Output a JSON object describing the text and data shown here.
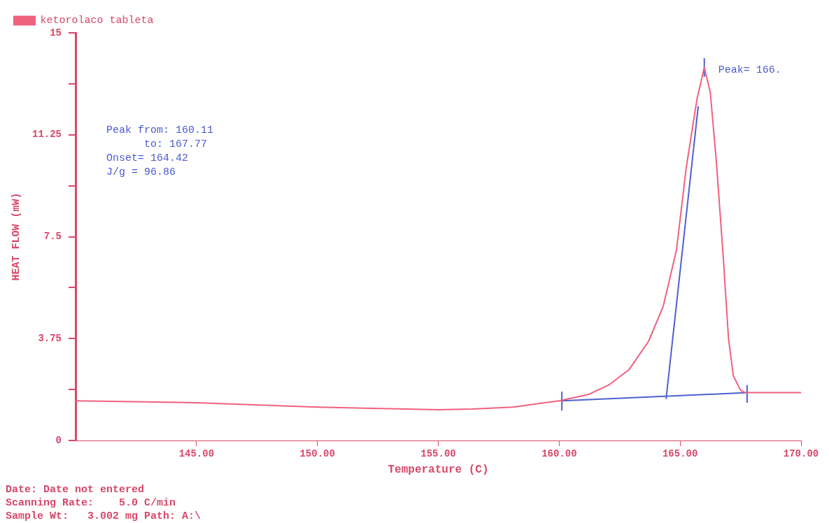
{
  "chart_data": {
    "type": "line",
    "xlabel": "Temperature (C)",
    "ylabel": "HEAT FLOW (mW)",
    "xlim": [
      140,
      170
    ],
    "xticks": [
      {
        "value": 145,
        "label": "145.00"
      },
      {
        "value": 150,
        "label": "150.00"
      },
      {
        "value": 155,
        "label": "155.00"
      },
      {
        "value": 160,
        "label": "160.00"
      },
      {
        "value": 165,
        "label": "165.00"
      },
      {
        "value": 170,
        "label": "170.00"
      }
    ],
    "ylim": [
      0,
      15
    ],
    "yticks": [
      0,
      {
        "value": 1.875,
        "label": null
      },
      3.75,
      {
        "value": 5.625,
        "label": null
      },
      7.5,
      {
        "value": 9.375,
        "label": null
      },
      11.25,
      {
        "value": 13.125,
        "label": null
      },
      15
    ],
    "grid": false,
    "legend": "top left",
    "marker": "none",
    "line_style": "solid",
    "series": [
      {
        "name": "ketorolaco tableta",
        "color": "#f0607f",
        "x": [
          140,
          145,
          150,
          155,
          156.4,
          158.1,
          160,
          161.2,
          162.05,
          162.9,
          163.7,
          164.3,
          164.85,
          165.25,
          165.7,
          166.0,
          166.25,
          166.5,
          166.8,
          167.0,
          167.2,
          167.5,
          167.7,
          168.2,
          170
        ],
        "values": [
          1.46,
          1.39,
          1.23,
          1.13,
          1.16,
          1.23,
          1.46,
          1.69,
          2.04,
          2.62,
          3.66,
          4.93,
          7.01,
          10.02,
          12.57,
          13.73,
          12.8,
          10.25,
          6.55,
          3.77,
          2.38,
          1.85,
          1.76,
          1.76,
          1.76
        ]
      },
      {
        "color": "#5060d0",
        "x": [
          160.11,
          167.77
        ],
        "values": [
          1.46,
          1.76
        ]
      },
      {
        "color": "#5060d0",
        "x": [
          164.42,
          165.75
        ],
        "values": [
          1.53,
          12.3
        ]
      },
      {
        "color": "#5060d0",
        "x": [
          160.11,
          160.11
        ],
        "values": [
          1.1,
          1.8
        ]
      },
      {
        "color": "#5060d0",
        "x": [
          167.77,
          167.77
        ],
        "values": [
          1.39,
          2.04
        ]
      },
      {
        "color": "#5060d0",
        "x": [
          166.0,
          166.0
        ],
        "values": [
          13.38,
          14.07
        ]
      }
    ],
    "annotations": [
      "Peak from: 160.11",
      "      to: 167.77",
      "Onset= 164.42",
      "J/g = 96.86",
      {
        "text": "Peak= 166.",
        "x": 166.0,
        "y": 13.73
      },
      "Date: Date not entered",
      "Scanning Rate:    5.0 C/min",
      "Sample Wt:   3.002 mg Path: A:\\"
    ]
  }
}
